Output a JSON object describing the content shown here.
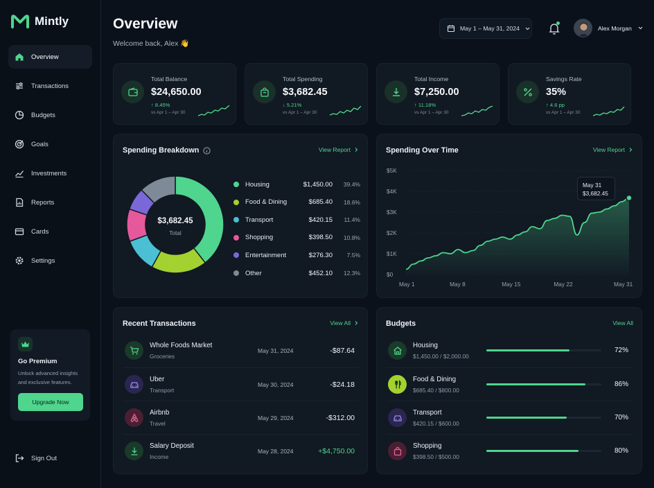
{
  "app": {
    "name": "Mintly"
  },
  "sidebar": {
    "items": [
      {
        "label": "Overview",
        "icon": "home-icon",
        "active": true
      },
      {
        "label": "Transactions",
        "icon": "list-icon",
        "active": false
      },
      {
        "label": "Budgets",
        "icon": "pie-icon",
        "active": false
      },
      {
        "label": "Goals",
        "icon": "target-icon",
        "active": false
      },
      {
        "label": "Investments",
        "icon": "trend-icon",
        "active": false
      },
      {
        "label": "Reports",
        "icon": "report-icon",
        "active": false
      },
      {
        "label": "Cards",
        "icon": "card-icon",
        "active": false
      },
      {
        "label": "Settings",
        "icon": "gear-icon",
        "active": false
      }
    ],
    "premium": {
      "title": "Go Premium",
      "text": "Unlock advanced insights and exclusive features.",
      "button": "Upgrade Now"
    },
    "signout": "Sign Out"
  },
  "header": {
    "title": "Overview",
    "welcome": "Welcome back, Alex 👋",
    "date_range": "May 1 – May 31, 2024",
    "user_name": "Alex Morgan"
  },
  "stats": [
    {
      "label": "Total Balance",
      "value": "$24,650.00",
      "change": "↑ 8.45%",
      "period": "vs Apr 1 – Apr 30",
      "icon": "wallet-icon"
    },
    {
      "label": "Total Spending",
      "value": "$3,682.45",
      "change": "↓ 5.21%",
      "period": "vs Apr 1 – Apr 30",
      "icon": "bag-icon"
    },
    {
      "label": "Total Income",
      "value": "$7,250.00",
      "change": "↑ 11.18%",
      "period": "vs Apr 1 – Apr 30",
      "icon": "download-icon"
    },
    {
      "label": "Savings Rate",
      "value": "35%",
      "change": "↑ 4.6 pp",
      "period": "vs Apr 1 – Apr 30",
      "icon": "percent-icon"
    }
  ],
  "breakdown": {
    "title": "Spending Breakdown",
    "link": "View Report",
    "center_value": "$3,682.45",
    "center_label": "Total",
    "items": [
      {
        "name": "Housing",
        "amount": "$1,450.00",
        "pct": "39.4%",
        "value": 39.4,
        "color": "#4fd58d"
      },
      {
        "name": "Food & Dining",
        "amount": "$685.40",
        "pct": "18.6%",
        "value": 18.6,
        "color": "#a3d12f"
      },
      {
        "name": "Transport",
        "amount": "$420.15",
        "pct": "11.4%",
        "value": 11.4,
        "color": "#4bbfd3"
      },
      {
        "name": "Shopping",
        "amount": "$398.50",
        "pct": "10.8%",
        "value": 10.8,
        "color": "#e6589c"
      },
      {
        "name": "Entertainment",
        "amount": "$276.30",
        "pct": "7.5%",
        "value": 7.5,
        "color": "#7b68d8"
      },
      {
        "name": "Other",
        "amount": "$452.10",
        "pct": "12.3%",
        "value": 12.3,
        "color": "#7f8a98"
      }
    ]
  },
  "over_time": {
    "title": "Spending Over Time",
    "link": "View Report",
    "tooltip_date": "May 31",
    "tooltip_value": "$3,682.45"
  },
  "chart_data": {
    "type": "area",
    "title": "Spending Over Time",
    "xlabel": "",
    "ylabel": "",
    "x_ticks": [
      "May 1",
      "May 8",
      "May 15",
      "May 22",
      "May 31"
    ],
    "y_ticks": [
      "$0",
      "$1K",
      "$2K",
      "$3K",
      "$4K",
      "$5K"
    ],
    "ylim": [
      0,
      5000
    ],
    "xlim": [
      1,
      31
    ],
    "series": [
      {
        "values": [
          [
            1,
            250
          ],
          [
            2,
            500
          ],
          [
            3,
            650
          ],
          [
            4,
            800
          ],
          [
            5,
            900
          ],
          [
            6,
            1050
          ],
          [
            7,
            1000
          ],
          [
            8,
            1200
          ],
          [
            9,
            1050
          ],
          [
            10,
            1150
          ],
          [
            11,
            1400
          ],
          [
            12,
            1600
          ],
          [
            13,
            1700
          ],
          [
            14,
            1800
          ],
          [
            15,
            1700
          ],
          [
            16,
            1900
          ],
          [
            17,
            2050
          ],
          [
            18,
            2300
          ],
          [
            19,
            2200
          ],
          [
            20,
            2600
          ],
          [
            21,
            2700
          ],
          [
            22,
            2850
          ],
          [
            23,
            2800
          ],
          [
            24,
            1900
          ],
          [
            25,
            2500
          ],
          [
            26,
            2950
          ],
          [
            27,
            3000
          ],
          [
            28,
            3150
          ],
          [
            29,
            3300
          ],
          [
            30,
            3500
          ],
          [
            31,
            3682
          ]
        ]
      }
    ]
  },
  "transactions": {
    "title": "Recent Transactions",
    "link": "View All",
    "items": [
      {
        "name": "Whole Foods Market",
        "category": "Groceries",
        "date": "May 31, 2024",
        "amount": "-$87.64",
        "positive": false,
        "icon": "cart-icon",
        "color": "#4fd58d",
        "bg": "#1a3a2a"
      },
      {
        "name": "Uber",
        "category": "Transport",
        "date": "May 30, 2024",
        "amount": "-$24.18",
        "positive": false,
        "icon": "car-icon",
        "color": "#9b8cf0",
        "bg": "#2a2650"
      },
      {
        "name": "Airbnb",
        "category": "Travel",
        "date": "May 29, 2024",
        "amount": "-$312.00",
        "positive": false,
        "icon": "airbnb-icon",
        "color": "#f06292",
        "bg": "#4a1f33"
      },
      {
        "name": "Salary Deposit",
        "category": "Income",
        "date": "May 28, 2024",
        "amount": "+$4,750.00",
        "positive": true,
        "icon": "download-icon",
        "color": "#4fd58d",
        "bg": "#1a3a2a"
      }
    ]
  },
  "budgets": {
    "title": "Budgets",
    "link": "View All",
    "items": [
      {
        "name": "Housing",
        "amount": "$1,450.00 / $2,000.00",
        "pct": "72%",
        "value": 0.72,
        "icon": "house-icon",
        "color": "#4fd58d",
        "bg": "#1a3a2a"
      },
      {
        "name": "Food & Dining",
        "amount": "$685.40 / $800.00",
        "pct": "86%",
        "value": 0.86,
        "icon": "fork-icon",
        "color": "#1a2a0e",
        "bg": "#a3d12f"
      },
      {
        "name": "Transport",
        "amount": "$420.15 / $600.00",
        "pct": "70%",
        "value": 0.7,
        "icon": "car-icon",
        "color": "#9b8cf0",
        "bg": "#2a2650"
      },
      {
        "name": "Shopping",
        "amount": "$398.50 / $500.00",
        "pct": "80%",
        "value": 0.8,
        "icon": "bag-icon",
        "color": "#f06292",
        "bg": "#4a1f33"
      }
    ]
  }
}
